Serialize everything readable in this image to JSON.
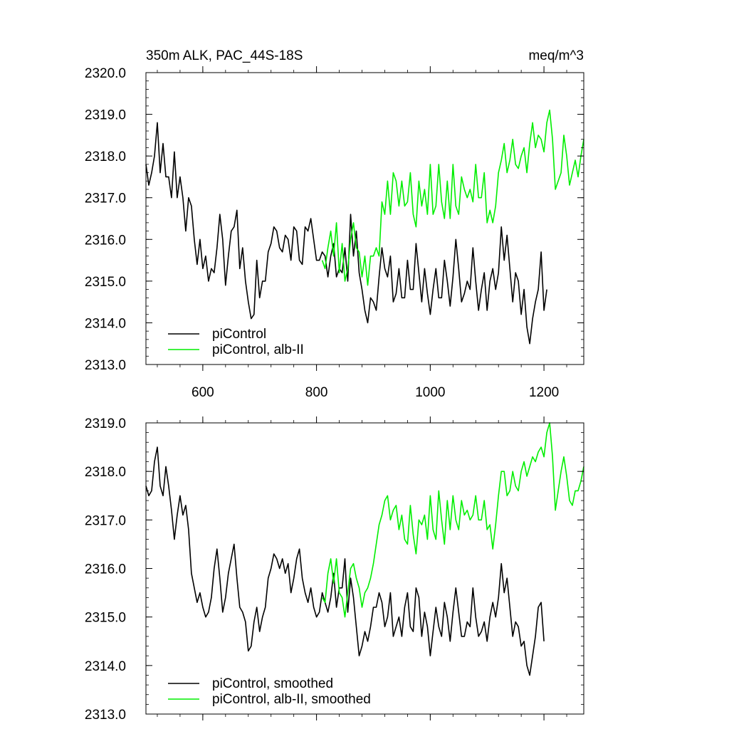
{
  "chart_data": [
    {
      "type": "line",
      "title_left": "350m ALK, PAC_44S-18S",
      "title_right": "meq/m^3",
      "xlabel": "",
      "ylabel": "",
      "xlim": [
        500,
        1270
      ],
      "ylim": [
        2313.0,
        2320.0
      ],
      "y_ticks": [
        "2313.0",
        "2314.0",
        "2315.0",
        "2316.0",
        "2317.0",
        "2318.0",
        "2319.0",
        "2320.0"
      ],
      "x_ticks": [
        "600",
        "800",
        "1000",
        "1200"
      ],
      "legend_position": "bottom-left",
      "series": [
        {
          "name": "piControl",
          "color": "#000000",
          "x": [
            500,
            505,
            510,
            515,
            520,
            525,
            530,
            535,
            540,
            545,
            550,
            555,
            560,
            565,
            570,
            575,
            580,
            585,
            590,
            595,
            600,
            605,
            610,
            615,
            620,
            625,
            630,
            635,
            640,
            645,
            650,
            655,
            660,
            665,
            670,
            675,
            680,
            685,
            690,
            695,
            700,
            705,
            710,
            715,
            720,
            725,
            730,
            735,
            740,
            745,
            750,
            755,
            760,
            765,
            770,
            775,
            780,
            785,
            790,
            795,
            800,
            805,
            810,
            815,
            820,
            825,
            830,
            835,
            840,
            845,
            850,
            855,
            860,
            865,
            870,
            875,
            880,
            885,
            890,
            895,
            900,
            905,
            910,
            915,
            920,
            925,
            930,
            935,
            940,
            945,
            950,
            955,
            960,
            965,
            970,
            975,
            980,
            985,
            990,
            995,
            1000,
            1005,
            1010,
            1015,
            1020,
            1025,
            1030,
            1035,
            1040,
            1045,
            1050,
            1055,
            1060,
            1065,
            1070,
            1075,
            1080,
            1085,
            1090,
            1095,
            1100,
            1105,
            1110,
            1115,
            1120,
            1125,
            1130,
            1135,
            1140,
            1145,
            1150,
            1155,
            1160,
            1165,
            1170,
            1175,
            1180,
            1185,
            1190,
            1195,
            1200
          ],
          "values": [
            2317.8,
            2317.3,
            2317.6,
            2318.0,
            2318.8,
            2317.6,
            2318.3,
            2317.5,
            2317.5,
            2317.0,
            2318.1,
            2317.0,
            2317.5,
            2317.0,
            2316.2,
            2317.0,
            2316.8,
            2316.0,
            2315.4,
            2316.0,
            2315.3,
            2315.6,
            2315.0,
            2315.3,
            2315.2,
            2315.8,
            2316.6,
            2316.0,
            2314.9,
            2315.6,
            2316.2,
            2316.3,
            2316.7,
            2315.3,
            2315.8,
            2315.0,
            2314.5,
            2314.1,
            2314.2,
            2315.5,
            2314.6,
            2315.0,
            2315.0,
            2315.7,
            2315.9,
            2316.3,
            2316.2,
            2315.8,
            2315.7,
            2316.1,
            2316.0,
            2315.5,
            2316.3,
            2316.2,
            2315.5,
            2315.4,
            2316.3,
            2316.2,
            2316.5,
            2316.0,
            2315.5,
            2315.5,
            2315.7,
            2315.6,
            2315.1,
            2315.6,
            2315.9,
            2315.1,
            2315.3,
            2315.2,
            2315.8,
            2315.0,
            2316.6,
            2315.6,
            2316.2,
            2315.2,
            2314.8,
            2314.3,
            2314.0,
            2314.6,
            2314.5,
            2314.3,
            2315.1,
            2315.8,
            2315.3,
            2315.1,
            2315.6,
            2314.5,
            2314.7,
            2315.3,
            2314.6,
            2314.6,
            2315.5,
            2314.8,
            2314.8,
            2315.9,
            2315.2,
            2314.5,
            2315.3,
            2314.7,
            2314.2,
            2314.8,
            2315.3,
            2314.6,
            2314.6,
            2315.5,
            2315.0,
            2314.4,
            2315.1,
            2316.0,
            2315.3,
            2314.5,
            2314.7,
            2315.0,
            2314.8,
            2315.8,
            2315.0,
            2314.3,
            2314.8,
            2315.2,
            2314.3,
            2315.0,
            2315.3,
            2314.8,
            2315.2,
            2316.3,
            2315.5,
            2316.1,
            2315.3,
            2314.5,
            2315.2,
            2315.0,
            2314.2,
            2314.8,
            2313.9,
            2313.5,
            2314.1,
            2314.5,
            2314.8,
            2315.7,
            2314.3
          ],
          "extra_points": [
            [
              1205,
              2314.8
            ]
          ]
        },
        {
          "name": "piControl, alb-II",
          "color": "#00ee00",
          "x": [
            810,
            815,
            820,
            825,
            830,
            835,
            840,
            845,
            850,
            855,
            860,
            865,
            870,
            875,
            880,
            885,
            890,
            895,
            900,
            905,
            910,
            915,
            920,
            925,
            930,
            935,
            940,
            945,
            950,
            955,
            960,
            965,
            970,
            975,
            980,
            985,
            990,
            995,
            1000,
            1005,
            1010,
            1015,
            1020,
            1025,
            1030,
            1035,
            1040,
            1045,
            1050,
            1055,
            1060,
            1065,
            1070,
            1075,
            1080,
            1085,
            1090,
            1095,
            1100,
            1105,
            1110,
            1115,
            1120,
            1125,
            1130,
            1135,
            1140,
            1145,
            1150,
            1155,
            1160,
            1165,
            1170,
            1175,
            1180,
            1185,
            1190,
            1195,
            1200,
            1205,
            1210,
            1215,
            1220,
            1225,
            1230,
            1235,
            1240,
            1245,
            1250,
            1255,
            1260,
            1265,
            1270
          ],
          "values": [
            2315.5,
            2315.3,
            2315.8,
            2316.2,
            2315.6,
            2316.4,
            2315.2,
            2315.9,
            2315.0,
            2315.3,
            2316.0,
            2316.4,
            2315.8,
            2315.7,
            2315.1,
            2315.6,
            2314.9,
            2315.6,
            2315.6,
            2315.8,
            2315.6,
            2316.9,
            2316.6,
            2317.4,
            2316.6,
            2317.6,
            2317.4,
            2316.8,
            2317.4,
            2316.8,
            2316.9,
            2317.6,
            2316.6,
            2316.3,
            2317.4,
            2316.8,
            2317.2,
            2316.6,
            2317.8,
            2316.6,
            2316.8,
            2317.8,
            2316.9,
            2316.5,
            2317.4,
            2316.5,
            2317.8,
            2316.8,
            2316.6,
            2317.5,
            2317.2,
            2317.0,
            2317.2,
            2316.9,
            2317.8,
            2317.0,
            2317.0,
            2317.6,
            2316.4,
            2316.7,
            2316.4,
            2316.8,
            2317.6,
            2317.9,
            2318.3,
            2317.6,
            2317.9,
            2318.4,
            2317.8,
            2317.7,
            2318.0,
            2318.2,
            2317.6,
            2318.3,
            2318.8,
            2318.2,
            2318.5,
            2318.4,
            2318.1,
            2318.8,
            2319.1,
            2318.4,
            2317.2,
            2317.4,
            2317.6,
            2318.5,
            2318.0,
            2317.3,
            2317.6,
            2317.9,
            2317.5,
            2318.0,
            2318.4
          ]
        }
      ]
    },
    {
      "type": "line",
      "xlabel": "",
      "ylabel": "",
      "xlim": [
        500,
        1270
      ],
      "ylim": [
        2313.0,
        2319.0
      ],
      "y_ticks": [
        "2313.0",
        "2314.0",
        "2315.0",
        "2316.0",
        "2317.0",
        "2318.0",
        "2319.0"
      ],
      "legend_position": "bottom-left",
      "series": [
        {
          "name": "piControl, smoothed",
          "color": "#000000",
          "x": [
            500,
            505,
            510,
            515,
            520,
            525,
            530,
            535,
            540,
            545,
            550,
            555,
            560,
            565,
            570,
            575,
            580,
            585,
            590,
            595,
            600,
            605,
            610,
            615,
            620,
            625,
            630,
            635,
            640,
            645,
            650,
            655,
            660,
            665,
            670,
            675,
            680,
            685,
            690,
            695,
            700,
            705,
            710,
            715,
            720,
            725,
            730,
            735,
            740,
            745,
            750,
            755,
            760,
            765,
            770,
            775,
            780,
            785,
            790,
            795,
            800,
            805,
            810,
            815,
            820,
            825,
            830,
            835,
            840,
            845,
            850,
            855,
            860,
            865,
            870,
            875,
            880,
            885,
            890,
            895,
            900,
            905,
            910,
            915,
            920,
            925,
            930,
            935,
            940,
            945,
            950,
            955,
            960,
            965,
            970,
            975,
            980,
            985,
            990,
            995,
            1000,
            1005,
            1010,
            1015,
            1020,
            1025,
            1030,
            1035,
            1040,
            1045,
            1050,
            1055,
            1060,
            1065,
            1070,
            1075,
            1080,
            1085,
            1090,
            1095,
            1100,
            1105,
            1110,
            1115,
            1120,
            1125,
            1130,
            1135,
            1140,
            1145,
            1150,
            1155,
            1160,
            1165,
            1170,
            1175,
            1180,
            1185,
            1190,
            1195,
            1200
          ],
          "values": [
            2317.7,
            2317.5,
            2317.6,
            2318.2,
            2318.5,
            2317.7,
            2317.5,
            2318.1,
            2317.7,
            2317.2,
            2316.6,
            2317.1,
            2317.5,
            2317.1,
            2317.3,
            2316.8,
            2315.9,
            2315.6,
            2315.3,
            2315.5,
            2315.2,
            2315.0,
            2315.1,
            2315.4,
            2316.0,
            2316.4,
            2315.8,
            2315.1,
            2315.4,
            2315.9,
            2316.2,
            2316.5,
            2315.8,
            2315.2,
            2315.1,
            2314.9,
            2314.3,
            2314.4,
            2314.9,
            2315.2,
            2314.7,
            2315.0,
            2315.2,
            2315.8,
            2316.0,
            2316.3,
            2316.2,
            2316.0,
            2316.2,
            2315.9,
            2316.1,
            2315.5,
            2315.8,
            2316.2,
            2316.4,
            2315.8,
            2315.5,
            2315.3,
            2315.6,
            2315.2,
            2315.0,
            2315.1,
            2315.5,
            2315.3,
            2315.1,
            2315.4,
            2315.9,
            2315.2,
            2315.6,
            2315.6,
            2316.2,
            2315.1,
            2315.8,
            2315.4,
            2314.8,
            2314.2,
            2314.4,
            2314.7,
            2314.5,
            2314.8,
            2315.2,
            2315.2,
            2315.5,
            2315.3,
            2314.8,
            2315.0,
            2315.5,
            2314.6,
            2314.8,
            2315.0,
            2314.6,
            2315.2,
            2315.5,
            2314.8,
            2314.7,
            2315.6,
            2315.4,
            2314.6,
            2315.1,
            2314.8,
            2314.2,
            2314.7,
            2315.2,
            2314.8,
            2314.6,
            2315.3,
            2315.0,
            2314.5,
            2315.1,
            2315.6,
            2315.1,
            2314.6,
            2314.6,
            2314.9,
            2314.8,
            2315.6,
            2315.0,
            2314.6,
            2314.7,
            2314.9,
            2314.5,
            2315.0,
            2315.3,
            2315.0,
            2315.4,
            2316.1,
            2315.5,
            2315.8,
            2315.2,
            2314.6,
            2314.9,
            2314.8,
            2314.4,
            2314.5,
            2314.0,
            2313.8,
            2314.2,
            2314.6,
            2315.2,
            2315.3,
            2314.5
          ]
        },
        {
          "name": "piControl, alb-II, smoothed",
          "color": "#00ee00",
          "x": [
            810,
            815,
            820,
            825,
            830,
            835,
            840,
            845,
            850,
            855,
            860,
            865,
            870,
            875,
            880,
            885,
            890,
            895,
            900,
            905,
            910,
            915,
            920,
            925,
            930,
            935,
            940,
            945,
            950,
            955,
            960,
            965,
            970,
            975,
            980,
            985,
            990,
            995,
            1000,
            1005,
            1010,
            1015,
            1020,
            1025,
            1030,
            1035,
            1040,
            1045,
            1050,
            1055,
            1060,
            1065,
            1070,
            1075,
            1080,
            1085,
            1090,
            1095,
            1100,
            1105,
            1110,
            1115,
            1120,
            1125,
            1130,
            1135,
            1140,
            1145,
            1150,
            1155,
            1160,
            1165,
            1170,
            1175,
            1180,
            1185,
            1190,
            1195,
            1200,
            1205,
            1210,
            1215,
            1220,
            1225,
            1230,
            1235,
            1240,
            1245,
            1250,
            1255,
            1260,
            1265,
            1270
          ],
          "values": [
            2315.4,
            2315.3,
            2315.9,
            2316.2,
            2315.7,
            2316.2,
            2315.5,
            2315.4,
            2315.0,
            2315.5,
            2316.0,
            2316.1,
            2315.8,
            2315.6,
            2315.2,
            2315.5,
            2315.6,
            2315.8,
            2316.1,
            2316.5,
            2316.9,
            2317.1,
            2317.4,
            2317.5,
            2317.0,
            2317.2,
            2317.3,
            2316.8,
            2317.1,
            2316.6,
            2316.5,
            2317.3,
            2316.7,
            2316.3,
            2317.0,
            2316.9,
            2317.1,
            2316.6,
            2317.5,
            2316.8,
            2316.6,
            2317.6,
            2317.0,
            2316.5,
            2317.4,
            2316.8,
            2317.5,
            2317.0,
            2316.8,
            2317.4,
            2317.1,
            2317.2,
            2317.0,
            2317.1,
            2317.5,
            2317.0,
            2317.0,
            2317.4,
            2316.8,
            2316.9,
            2316.4,
            2316.9,
            2317.5,
            2318.0,
            2318.0,
            2317.5,
            2317.6,
            2318.0,
            2317.7,
            2317.6,
            2318.0,
            2318.2,
            2317.9,
            2318.1,
            2318.3,
            2318.2,
            2318.4,
            2318.5,
            2318.3,
            2318.8,
            2319.0,
            2318.3,
            2317.2,
            2317.6,
            2318.0,
            2318.3,
            2317.9,
            2317.4,
            2317.3,
            2317.6,
            2317.6,
            2317.8,
            2318.1
          ]
        }
      ]
    }
  ]
}
